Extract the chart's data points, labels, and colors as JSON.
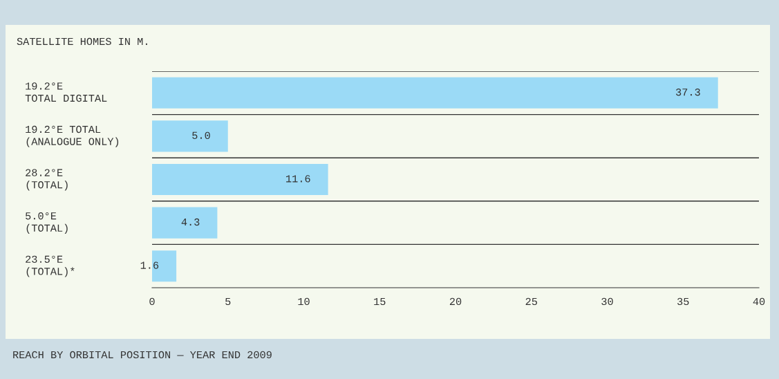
{
  "chart_data": {
    "type": "bar",
    "orientation": "horizontal",
    "title": "SATELLITE HOMES IN M.",
    "categories": [
      "19.2°E\nTOTAL DIGITAL",
      "19.2°E TOTAL\n(ANALOGUE ONLY)",
      "28.2°E\n(TOTAL)",
      "5.0°E\n(TOTAL)",
      "23.5°E\n(TOTAL)*"
    ],
    "values": [
      37.3,
      5.0,
      11.6,
      4.3,
      1.6
    ],
    "value_labels": [
      "37.3",
      "5.0",
      "11.6",
      "4.3",
      "1.6"
    ],
    "color": "#9bdaf6",
    "xlim": [
      0,
      40
    ],
    "xticks": [
      0,
      5,
      10,
      15,
      20,
      25,
      30,
      35,
      40
    ],
    "grid": "y",
    "legend": false,
    "annotations": [
      "REACH BY ORBITAL POSITION — YEAR END 2009"
    ]
  }
}
